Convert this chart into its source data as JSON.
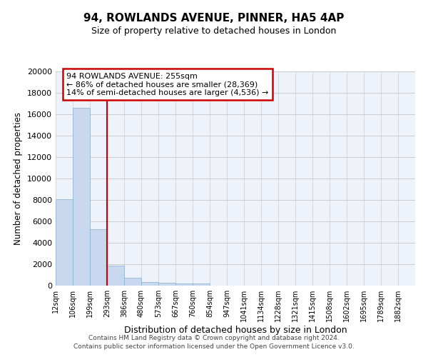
{
  "title": "94, ROWLANDS AVENUE, PINNER, HA5 4AP",
  "subtitle": "Size of property relative to detached houses in London",
  "xlabel": "Distribution of detached houses by size in London",
  "ylabel": "Number of detached properties",
  "bin_labels": [
    "12sqm",
    "106sqm",
    "199sqm",
    "293sqm",
    "386sqm",
    "480sqm",
    "573sqm",
    "667sqm",
    "760sqm",
    "854sqm",
    "947sqm",
    "1041sqm",
    "1134sqm",
    "1228sqm",
    "1321sqm",
    "1415sqm",
    "1508sqm",
    "1602sqm",
    "1695sqm",
    "1789sqm",
    "1882sqm"
  ],
  "bar_heights": [
    8100,
    16600,
    5300,
    1850,
    750,
    330,
    270,
    220,
    180,
    0,
    0,
    0,
    0,
    0,
    0,
    0,
    0,
    0,
    0,
    0,
    0
  ],
  "bar_color": "#c8d8ee",
  "bar_edge_color": "#8ab0d0",
  "highlight_bin_index": 2,
  "highlight_line_color": "#cc0000",
  "annotation_text": "94 ROWLANDS AVENUE: 255sqm\n← 86% of detached houses are smaller (28,369)\n14% of semi-detached houses are larger (4,536) →",
  "annotation_box_color": "#cc0000",
  "ylim": [
    0,
    20000
  ],
  "yticks": [
    0,
    2000,
    4000,
    6000,
    8000,
    10000,
    12000,
    14000,
    16000,
    18000,
    20000
  ],
  "grid_color": "#cccccc",
  "background_color": "#eef2fa",
  "footer_line1": "Contains HM Land Registry data © Crown copyright and database right 2024.",
  "footer_line2": "Contains public sector information licensed under the Open Government Licence v3.0."
}
